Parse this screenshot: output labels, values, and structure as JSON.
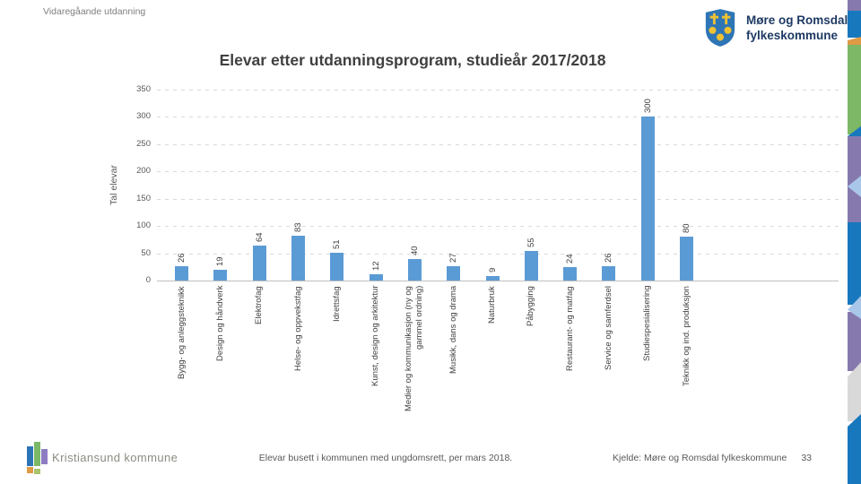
{
  "header": {
    "eyebrow": "Vidaregåande utdanning",
    "logo": {
      "org_line1": "Møre og Romsdal",
      "org_line2": "fylkeskommune"
    }
  },
  "chart_data": {
    "type": "bar",
    "title": "Elevar etter utdanningsprogram, studieår 2017/2018",
    "ylabel": "Tal elevar",
    "xlabel": "",
    "categories": [
      "Bygg- og anleggsteknikk",
      "Design og håndverk",
      "Elektrofag",
      "Helse- og oppvekstfag",
      "Idrettsfag",
      "Kunst, design og arkitektur",
      "Medier og kommunikasjon (ny og gammel ordning)",
      "Musikk, dans og drama",
      "Naturbruk",
      "Påbygging",
      "Restaurant- og matfag",
      "Service og samferdsel",
      "Studiespesialisering",
      "Teknikk og ind. produksjon"
    ],
    "values": [
      26,
      19,
      64,
      83,
      51,
      12,
      40,
      27,
      9,
      55,
      24,
      26,
      300,
      80
    ],
    "ylim": [
      0,
      350
    ],
    "yticks": [
      0,
      50,
      100,
      150,
      200,
      250,
      300,
      350
    ],
    "grid": "horizontal-dashed",
    "legend": "none",
    "bar_color": "#5B9BD5",
    "value_labels_rotated": true,
    "category_labels_rotated": true
  },
  "footer": {
    "org": "Kristiansund kommune",
    "note": "Elevar busett i kommunen med ungdomsrett, per mars 2018.",
    "source": "Kjelde: Møre og Romsdal fylkeskommune",
    "page_number": "33"
  },
  "colors": {
    "bar": "#5B9BD5",
    "title_text": "#404040",
    "axis_text": "#595959",
    "muted_text": "#7F7F7F",
    "brand_navy": "#1E3A63",
    "shield_blue": "#2E75B6",
    "shield_gold": "#EFC133",
    "kristiansund_text": "#8C8C82",
    "stripe_purple": "#8679AD",
    "stripe_blue": "#1878BE",
    "stripe_green": "#7CB865",
    "stripe_orange": "#DE9A45",
    "stripe_lightblue": "#A9C7E9",
    "stripe_gray": "#D9D9D9"
  },
  "icons": {
    "county_crest": "crest-shield-icon",
    "kommune_logo": "bar-cluster-logo-icon"
  }
}
